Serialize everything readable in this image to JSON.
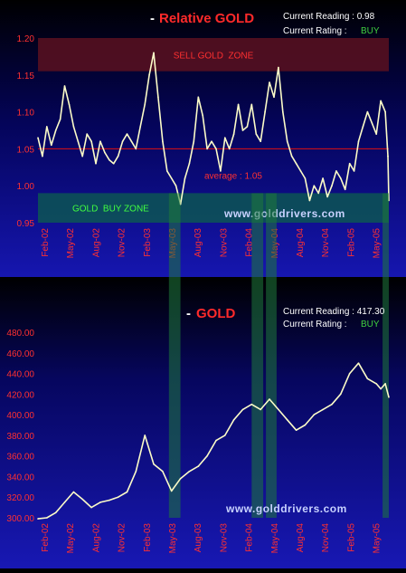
{
  "colors": {
    "background": "#000000",
    "panel_top": "#000033",
    "panel_bottom": "#1a1ab0",
    "line": "#fcfcc8",
    "title_red": "#ff2a2a",
    "tick_red": "#ff3030",
    "avg_line": "#e01010",
    "sell_zone": "#5a1020",
    "buy_zone": "#0d5a50",
    "buy_band": "#1f7a3a",
    "zone_text_sell": "#ff3030",
    "zone_text_buy": "#40ff40",
    "rating_green": "#40d040",
    "watermark": "#c8d2ff",
    "info_text": "#ffffff"
  },
  "watermark": "www.golddrivers.com",
  "chart_data": [
    {
      "type": "line",
      "title_prefix": "- ",
      "title": "Relative GOLD",
      "info": {
        "reading_label": "Current Reading : 0.98",
        "rating_label": "Current Rating :",
        "rating_value": "BUY"
      },
      "y_ticks": [
        "1.20",
        "1.15",
        "1.10",
        "1.05",
        "1.00",
        "0.95"
      ],
      "x_ticks": [
        "Feb-02",
        "May-02",
        "Aug-02",
        "Nov-02",
        "Feb-03",
        "May-03",
        "Aug-03",
        "Nov-03",
        "Feb-04",
        "May-04",
        "Aug-04",
        "Nov-04",
        "Feb-05",
        "May-05"
      ],
      "ylim": [
        0.95,
        1.2
      ],
      "xlim": [
        0,
        39.4
      ],
      "zones": [
        {
          "label": "SELL GOLD  ZONE",
          "from": 1.155,
          "to": 1.2,
          "kind": "sell"
        },
        {
          "label": "GOLD  BUY ZONE",
          "from": 0.95,
          "to": 0.99,
          "kind": "buy"
        }
      ],
      "average": {
        "value": 1.05,
        "label": "average : 1.05"
      },
      "series": [
        {
          "x": [
            0,
            0.5,
            1,
            1.5,
            2,
            2.5,
            3,
            3.5,
            4,
            4.5,
            5,
            5.5,
            6,
            6.5,
            7,
            7.5,
            8,
            8.5,
            9,
            9.5,
            10,
            10.5,
            11,
            11.5,
            12,
            12.5,
            13,
            13.5,
            14,
            14.5,
            15,
            15.5,
            16,
            16.5,
            17,
            17.5,
            18,
            18.5,
            19,
            19.5,
            20,
            20.5,
            21,
            21.5,
            22,
            22.5,
            23,
            23.5,
            24,
            24.5,
            25,
            25.5,
            26,
            26.5,
            27,
            27.5,
            28,
            28.5,
            29,
            29.5,
            30,
            30.5,
            31,
            31.5,
            32,
            32.5,
            33,
            33.5,
            34,
            34.5,
            35,
            35.5,
            36,
            36.5,
            37,
            37.5,
            38,
            38.5,
            39,
            39.3
          ],
          "y": [
            1.065,
            1.04,
            1.08,
            1.055,
            1.075,
            1.09,
            1.135,
            1.11,
            1.08,
            1.06,
            1.04,
            1.07,
            1.06,
            1.03,
            1.06,
            1.045,
            1.035,
            1.03,
            1.04,
            1.06,
            1.07,
            1.06,
            1.05,
            1.08,
            1.11,
            1.15,
            1.18,
            1.12,
            1.06,
            1.02,
            1.01,
            1.0,
            0.975,
            1.01,
            1.03,
            1.06,
            1.12,
            1.095,
            1.05,
            1.06,
            1.05,
            1.02,
            1.065,
            1.05,
            1.07,
            1.11,
            1.075,
            1.08,
            1.11,
            1.07,
            1.06,
            1.1,
            1.14,
            1.12,
            1.16,
            1.1,
            1.06,
            1.04,
            1.03,
            1.02,
            1.01,
            0.98,
            1.0,
            0.99,
            1.01,
            0.985,
            1.0,
            1.02,
            1.01,
            0.995,
            1.03,
            1.02,
            1.06,
            1.08,
            1.1,
            1.085,
            1.07,
            1.115,
            1.1,
            1.04
          ]
        },
        {
          "x": [
            39.3,
            39.4
          ],
          "y": [
            1.04,
            0.98
          ]
        }
      ]
    },
    {
      "type": "line",
      "title_prefix": "- ",
      "title": "GOLD",
      "info": {
        "reading_label": "Current Reading : 417.30",
        "rating_label": "Current Rating :",
        "rating_value": "BUY"
      },
      "y_ticks": [
        "480.00",
        "460.00",
        "440.00",
        "420.00",
        "400.00",
        "380.00",
        "360.00",
        "340.00",
        "320.00",
        "300.00"
      ],
      "x_ticks": [
        "Feb-02",
        "May-02",
        "Aug-02",
        "Nov-02",
        "Feb-03",
        "May-03",
        "Aug-03",
        "Nov-03",
        "Feb-04",
        "May-04",
        "Aug-04",
        "Nov-04",
        "Feb-05",
        "May-05"
      ],
      "ylim": [
        300,
        480
      ],
      "xlim": [
        0,
        39.4
      ],
      "series": [
        {
          "x": [
            0,
            1,
            2,
            3,
            4,
            5,
            6,
            7,
            8,
            9,
            10,
            11,
            12,
            13,
            14,
            15,
            16,
            17,
            18,
            19,
            20,
            21,
            22,
            23,
            24,
            25,
            26,
            27,
            28,
            29,
            30,
            31,
            32,
            33,
            34,
            35,
            36,
            37,
            38,
            38.5,
            39,
            39.4
          ],
          "y": [
            299,
            300,
            305,
            315,
            325,
            318,
            310,
            315,
            317,
            320,
            325,
            345,
            380,
            352,
            345,
            326,
            338,
            345,
            350,
            360,
            375,
            380,
            395,
            405,
            410,
            405,
            415,
            405,
            395,
            385,
            390,
            400,
            405,
            410,
            420,
            440,
            450,
            435,
            430,
            425,
            430,
            417
          ]
        }
      ]
    }
  ],
  "buy_signals": {
    "x_ranges": [
      [
        14.7,
        16.0
      ],
      [
        24.0,
        25.3
      ],
      [
        25.6,
        26.8
      ],
      [
        38.7,
        39.4
      ]
    ]
  }
}
